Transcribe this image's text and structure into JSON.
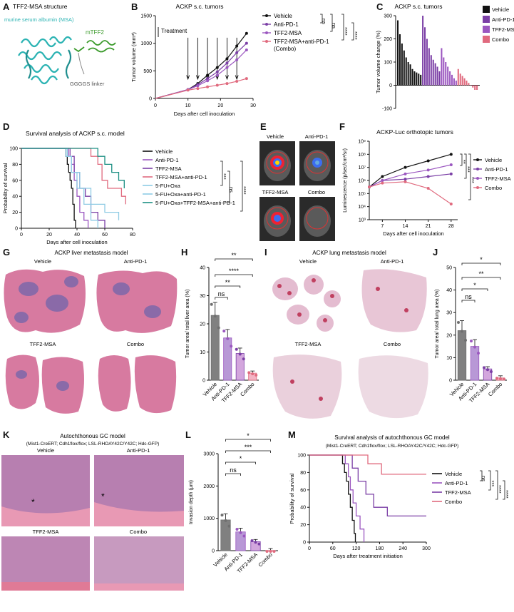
{
  "colors": {
    "black": "#111111",
    "purple": "#7b3fa6",
    "violet": "#9b57c0",
    "pink": "#e06a7e",
    "teal": "#1c8f83",
    "lightblue": "#8ecbe4",
    "tissue_pink": "#d77aa0",
    "tissue_purple": "#8a6aa8",
    "protein_cyan": "#2bb3b3",
    "protein_green": "#3a9a2a"
  },
  "labels": {
    "A": "A",
    "B": "B",
    "C": "C",
    "D": "D",
    "E": "E",
    "F": "F",
    "G": "G",
    "H": "H",
    "I": "I",
    "J": "J",
    "K": "K",
    "L": "L",
    "M": "M"
  },
  "panelA": {
    "title": "TFF2-MSA structure",
    "msa": "murine serum albumin (MSA)",
    "mtff2": "mTFF2",
    "linker": "GGGGS linker"
  },
  "panelE": {
    "vehicle": "Vehicle",
    "antipd1": "Anti-PD-1",
    "tff2msa": "TFF2-MSA",
    "combo": "Combo"
  },
  "panelG": {
    "title": "ACKP liver metastasis model",
    "vehicle": "Vehicle",
    "antipd1": "Anti-PD-1",
    "tff2msa": "TFF2-MSA",
    "combo": "Combo"
  },
  "panelI": {
    "title": "ACKP lung metastasis model",
    "vehicle": "Vehicle",
    "antipd1": "Anti-PD-1",
    "tff2msa": "TFF2-MSA",
    "combo": "Combo"
  },
  "panelK": {
    "title": "Autochthonous GC model",
    "subtitle": "(Mist1-CreERT; Cdh1flox/flox; LSL-RHOAY42C/Y42C; Hdc-GFP)",
    "vehicle": "Vehicle",
    "antipd1": "Anti-PD-1",
    "tff2msa": "TFF2-MSA",
    "combo": "Combo",
    "star": "*"
  },
  "chart_data": [
    {
      "panel": "B",
      "type": "line",
      "title": "ACKP s.c. tumors",
      "xlabel": "Days after cell inoculation",
      "ylabel": "Tumor volume (mm³)",
      "xlim": [
        0,
        30
      ],
      "ylim": [
        0,
        1500
      ],
      "xticks": [
        0,
        10,
        20,
        30
      ],
      "yticks": [
        0,
        500,
        1000,
        1500
      ],
      "annotation": "Treatment",
      "treatment_days": [
        10,
        13,
        16,
        19,
        22,
        25
      ],
      "x": [
        10,
        13,
        16,
        19,
        22,
        25,
        28
      ],
      "series": [
        {
          "name": "Vehicle",
          "values": [
            160,
            270,
            420,
            560,
            720,
            950,
            1180
          ]
        },
        {
          "name": "Anti-PD-1",
          "values": [
            160,
            250,
            360,
            480,
            640,
            830,
            1000
          ]
        },
        {
          "name": "TFF2-MSA",
          "values": [
            160,
            230,
            320,
            420,
            560,
            700,
            880
          ]
        },
        {
          "name": "TFF2-MSA+anti-PD-1 (Combo)",
          "values": [
            150,
            180,
            210,
            240,
            270,
            310,
            360
          ]
        }
      ],
      "significance": [
        "ns",
        "ns",
        "****",
        "****",
        "****"
      ]
    },
    {
      "panel": "C",
      "type": "bar",
      "title": "ACKP  s.c. tumors",
      "ylabel": "Tumor volume change (%)",
      "ylim": [
        -100,
        300
      ],
      "yticks": [
        -100,
        0,
        100,
        200,
        300
      ],
      "series": [
        {
          "name": "Vehicle",
          "values": [
            280,
            220,
            180,
            150,
            120,
            100,
            90,
            70,
            60,
            55,
            50,
            45
          ]
        },
        {
          "name": "Anti-PD-1",
          "values": [
            300,
            250,
            200,
            160,
            130,
            110,
            95,
            80,
            60
          ]
        },
        {
          "name": "TFF2-MSA",
          "values": [
            160,
            120,
            100,
            80,
            60,
            45,
            30,
            20
          ]
        },
        {
          "name": "Combo",
          "values": [
            70,
            50,
            40,
            30,
            20,
            10,
            0,
            -10,
            -20,
            -20
          ]
        }
      ]
    },
    {
      "panel": "D",
      "type": "line",
      "title": "Survival analysis of ACKP s.c. model",
      "xlabel": "Days after cell inoculation",
      "ylabel": "Probability of survival",
      "xlim": [
        0,
        80
      ],
      "ylim": [
        0,
        100
      ],
      "xticks": [
        0,
        20,
        40,
        60,
        80
      ],
      "yticks": [
        0,
        20,
        40,
        60,
        80,
        100
      ],
      "series": [
        {
          "name": "Vehicle",
          "x": [
            0,
            30,
            32,
            33,
            34,
            35,
            36,
            37,
            38,
            39
          ],
          "values": [
            100,
            100,
            90,
            80,
            70,
            60,
            50,
            30,
            10,
            0
          ]
        },
        {
          "name": "Anti-PD-1",
          "x": [
            0,
            32,
            34,
            36,
            38,
            40,
            42,
            45,
            48
          ],
          "values": [
            100,
            100,
            90,
            80,
            60,
            40,
            20,
            10,
            0
          ]
        },
        {
          "name": "TFF2-MSA",
          "x": [
            0,
            33,
            35,
            38,
            42,
            46,
            50,
            55,
            60
          ],
          "values": [
            100,
            100,
            90,
            70,
            50,
            40,
            20,
            10,
            0
          ]
        },
        {
          "name": "TFF2-MSA+anti-PD-1",
          "x": [
            0,
            45,
            50,
            55,
            58,
            62,
            68,
            72,
            75
          ],
          "values": [
            100,
            100,
            90,
            80,
            60,
            50,
            50,
            40,
            30
          ]
        },
        {
          "name": "5-FU+Oxa",
          "x": [
            0,
            30,
            33,
            36,
            40,
            45,
            50,
            55
          ],
          "values": [
            100,
            100,
            90,
            70,
            50,
            30,
            10,
            0
          ]
        },
        {
          "name": "5-FU+Oxa+anti-PD-1",
          "x": [
            0,
            28,
            32,
            36,
            42,
            50,
            60,
            70
          ],
          "values": [
            100,
            100,
            90,
            70,
            50,
            30,
            20,
            10
          ]
        },
        {
          "name": "5-FU+Oxa+TFF2-MSA+anti-PD-1",
          "x": [
            0,
            48,
            55,
            60,
            65,
            70,
            74
          ],
          "values": [
            100,
            100,
            90,
            80,
            70,
            60,
            50
          ]
        }
      ],
      "significance": [
        "***",
        "ns",
        "****"
      ]
    },
    {
      "panel": "F",
      "type": "line",
      "title": "ACKP-Luc orthotopic tumors",
      "xlabel": "Days after cell inoculation",
      "ylabel": "Luminescence (p/sec/cm²/sr)",
      "scale": "log",
      "xticks": [
        7,
        14,
        21,
        28
      ],
      "yticks": [
        "10³",
        "10⁴",
        "10⁵",
        "10⁶",
        "10⁷",
        "10⁸",
        "10⁹"
      ],
      "ylim_exp": [
        3,
        9
      ],
      "x": [
        3,
        7,
        14,
        21,
        28
      ],
      "series": [
        {
          "name": "Vehicle",
          "log10_values": [
            5.5,
            6.3,
            7.0,
            7.5,
            8.0
          ]
        },
        {
          "name": "Anti-PD-1",
          "log10_values": [
            5.5,
            6.0,
            6.1,
            6.3,
            6.5
          ]
        },
        {
          "name": "TFF2-MSA",
          "log10_values": [
            5.5,
            6.0,
            6.5,
            6.8,
            7.2
          ]
        },
        {
          "name": "Combo",
          "log10_values": [
            5.5,
            5.8,
            5.9,
            5.4,
            4.2
          ]
        }
      ],
      "significance": [
        "**",
        "***",
        "***"
      ]
    },
    {
      "panel": "H",
      "type": "bar",
      "ylabel": "Tumor area/ total liver area (%)",
      "ylim": [
        0,
        40
      ],
      "yticks": [
        0,
        10,
        20,
        30,
        40
      ],
      "categories": [
        "Vehicle",
        "Anti-PD-1",
        "TFF2-MSA",
        "Combo"
      ],
      "values": [
        23,
        15,
        9.5,
        2.5
      ],
      "significance": [
        "ns",
        "**",
        "****",
        "**"
      ]
    },
    {
      "panel": "J",
      "type": "bar",
      "ylabel": "Tumor area/ total lung area (%)",
      "ylim": [
        0,
        50
      ],
      "yticks": [
        0,
        10,
        20,
        30,
        40,
        50
      ],
      "categories": [
        "Vehicle",
        "Anti-PD-1",
        "TFF2-MSA",
        "Combo"
      ],
      "values": [
        22,
        15,
        5,
        1
      ],
      "significance": [
        "ns",
        "*",
        "**",
        "*"
      ]
    },
    {
      "panel": "L",
      "type": "bar",
      "ylabel": "Invasion depth (μm)",
      "ylim": [
        0,
        3000
      ],
      "yticks": [
        0,
        1000,
        2000,
        3000
      ],
      "categories": [
        "Vehicle",
        "Anti-PD-1",
        "TFF2-MSA",
        "Combo"
      ],
      "values": [
        950,
        580,
        280,
        0
      ],
      "significance": [
        "ns",
        "*",
        "***",
        "*"
      ]
    },
    {
      "panel": "M",
      "type": "line",
      "title": "Survival analysis of autochthonous GC model",
      "subtitle": "(Mist1-CreERT; Cdh1flox/flox; LSL-RHOAY42C/Y42C; Hdc-GFP)",
      "xlabel": "Days after treatment initiation",
      "ylabel": "Probability of survival",
      "xlim": [
        0,
        300
      ],
      "ylim": [
        0,
        100
      ],
      "xticks": [
        0,
        60,
        120,
        180,
        240,
        300
      ],
      "yticks": [
        0,
        20,
        40,
        60,
        80,
        100
      ],
      "series": [
        {
          "name": "Vehicle",
          "x": [
            0,
            80,
            85,
            90,
            95,
            100,
            105,
            110,
            115,
            118
          ],
          "values": [
            100,
            100,
            90,
            80,
            70,
            55,
            40,
            25,
            10,
            0
          ]
        },
        {
          "name": "Anti-PD-1",
          "x": [
            0,
            85,
            92,
            100,
            105,
            112,
            120,
            130,
            140
          ],
          "values": [
            100,
            100,
            90,
            75,
            60,
            45,
            30,
            15,
            0
          ]
        },
        {
          "name": "TFF2-MSA",
          "x": [
            0,
            95,
            110,
            125,
            145,
            165,
            200,
            300
          ],
          "values": [
            100,
            100,
            85,
            70,
            55,
            40,
            30,
            30
          ]
        },
        {
          "name": "Combo",
          "x": [
            0,
            130,
            150,
            185,
            300
          ],
          "values": [
            100,
            100,
            90,
            78,
            78
          ]
        }
      ],
      "significance": [
        "ns",
        "***",
        "****",
        "****"
      ]
    }
  ]
}
